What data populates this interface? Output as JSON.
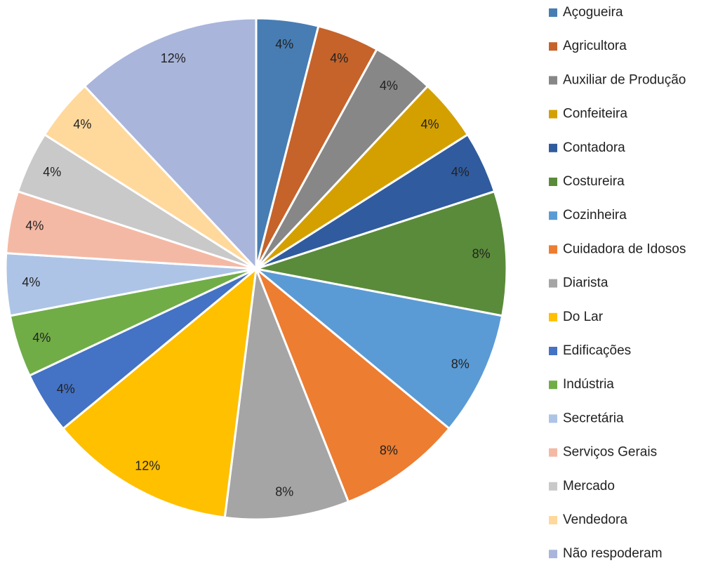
{
  "chart_data": {
    "type": "pie",
    "categories": [
      "Açogueira",
      "Agricultora",
      "Auxiliar de Produção",
      "Confeiteira",
      "Contadora",
      "Costureira",
      "Cozinheira",
      "Cuidadora de Idosos",
      "Diarista",
      "Do Lar",
      "Edificações",
      "Indústria",
      "Secretária",
      "Serviços Gerais",
      "Mercado",
      "Vendedora",
      "Não respoderam"
    ],
    "values": [
      4,
      4,
      4,
      4,
      4,
      8,
      8,
      8,
      8,
      12,
      4,
      4,
      4,
      4,
      4,
      4,
      12
    ],
    "value_labels": [
      "4%",
      "4%",
      "4%",
      "4%",
      "4%",
      "8%",
      "8%",
      "8%",
      "8%",
      "12%",
      "4%",
      "4%",
      "4%",
      "4%",
      "4%",
      "4%",
      "12%"
    ],
    "colors": [
      "#477db3",
      "#c5632a",
      "#878787",
      "#d4a000",
      "#305b9e",
      "#5a8b3a",
      "#5b9bd5",
      "#ed7d31",
      "#a5a5a5",
      "#ffc000",
      "#4472c4",
      "#70ad47",
      "#adc4e6",
      "#f4b9a5",
      "#c9c9c9",
      "#ffd89c",
      "#a9b5db"
    ],
    "legend": "right"
  }
}
